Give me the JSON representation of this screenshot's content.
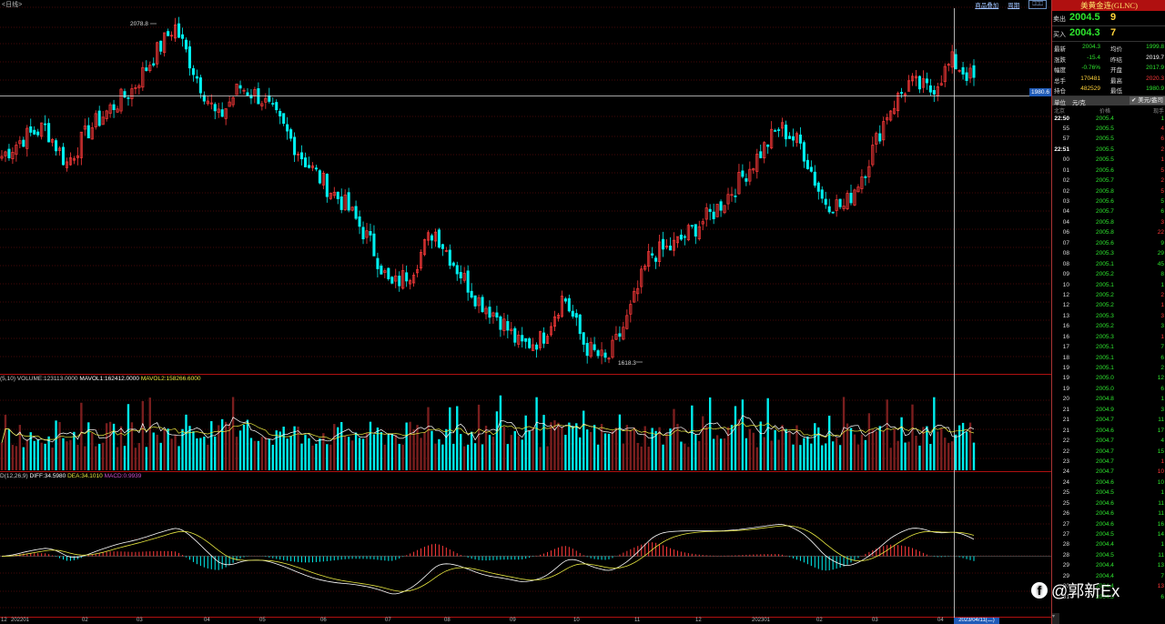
{
  "top": {
    "title": "<日线>",
    "links": [
      "商品叠加",
      "周期"
    ],
    "buttons": [
      "⎕⎕⎕"
    ]
  },
  "annotations": {
    "high_label": "2078.8",
    "low_label": "1618.3",
    "price_tag": "1980.6",
    "date_tag": "2023/04/11(二)"
  },
  "volume_legend": {
    "prefix": "(5,10)",
    "volume": "VOLUME:123113.0000",
    "mavol1": "MAVOL1:162412.0000",
    "mavol2": "MAVOL2:158266.6000"
  },
  "macd_legend": {
    "prefix": "D(12,26,9)",
    "diff": "DIFF:34.5980",
    "dea": "DEA:34.1010",
    "macd": "MACD:0.9939"
  },
  "x_axis_labels": [
    "12",
    "202201",
    "02",
    "03",
    "04",
    "05",
    "06",
    "07",
    "08",
    "09",
    "10",
    "11",
    "12",
    "202301",
    "02",
    "03",
    "04"
  ],
  "colors": {
    "up": "#ff3a3a",
    "down": "#00f0f0",
    "ma1": "#ffffff",
    "ma2": "#e8e840",
    "grid": "#8a1010",
    "quote_green": "#2ee62e",
    "quote_yellow": "#ffd23a",
    "panel_header_bg": "#b01010"
  },
  "panel": {
    "title": "美黄金连(GLNC)",
    "sell": {
      "label": "卖出",
      "price": "2004.5",
      "volume": "9"
    },
    "buy": {
      "label": "买入",
      "price": "2004.3",
      "volume": "7"
    },
    "stats": [
      {
        "l1": "最新",
        "v1": "2004.3",
        "c1": "#2ee62e",
        "l2": "均价",
        "v2": "1999.8",
        "c2": "#2ee62e"
      },
      {
        "l1": "涨跌",
        "v1": "-15.4",
        "c1": "#2ee62e",
        "l2": "昨结",
        "v2": "2019.7",
        "c2": "#ffffff"
      },
      {
        "l1": "幅度",
        "v1": "-0.76%",
        "c1": "#2ee62e",
        "l2": "开盘",
        "v2": "2017.9",
        "c2": "#2ee62e"
      },
      {
        "l1": "总手",
        "v1": "170481",
        "c1": "#ffd23a",
        "l2": "最高",
        "v2": "2020.3",
        "c2": "#ff3a3a"
      },
      {
        "l1": "持仓",
        "v1": "482529",
        "c1": "#ffd23a",
        "l2": "最低",
        "v2": "1980.9",
        "c2": "#2ee62e"
      }
    ],
    "unit_label": "单位",
    "unit_value": "元/克",
    "currency": "✔ 美元/盎司",
    "table_headers": {
      "time": "北京",
      "price": "价格",
      "volume": "现手"
    },
    "ticks": [
      {
        "t": "22:50",
        "p": "2005.4",
        "v": "1",
        "vc": "#2ee62e"
      },
      {
        "t": "55",
        "p": "2005.5",
        "v": "4",
        "vc": "#ff3a3a"
      },
      {
        "t": "57",
        "p": "2005.5",
        "v": "6",
        "vc": "#ff3a3a"
      },
      {
        "t": "22:51",
        "p": "2005.5",
        "v": "2",
        "vc": "#ff3a3a"
      },
      {
        "t": "00",
        "p": "2005.5",
        "v": "1",
        "vc": "#ff3a3a"
      },
      {
        "t": "01",
        "p": "2005.6",
        "v": "5",
        "vc": "#ff3a3a"
      },
      {
        "t": "02",
        "p": "2005.7",
        "v": "2",
        "vc": "#ff3a3a"
      },
      {
        "t": "02",
        "p": "2005.8",
        "v": "5",
        "vc": "#ff3a3a"
      },
      {
        "t": "03",
        "p": "2005.6",
        "v": "5",
        "vc": "#2ee62e"
      },
      {
        "t": "04",
        "p": "2005.7",
        "v": "6",
        "vc": "#2ee62e"
      },
      {
        "t": "04",
        "p": "2005.8",
        "v": "3",
        "vc": "#ff3a3a"
      },
      {
        "t": "06",
        "p": "2005.8",
        "v": "22",
        "vc": "#ff3a3a"
      },
      {
        "t": "07",
        "p": "2005.6",
        "v": "9",
        "vc": "#2ee62e"
      },
      {
        "t": "08",
        "p": "2005.3",
        "v": "29",
        "vc": "#2ee62e"
      },
      {
        "t": "08",
        "p": "2005.1",
        "v": "45",
        "vc": "#2ee62e"
      },
      {
        "t": "09",
        "p": "2005.2",
        "v": "8",
        "vc": "#2ee62e"
      },
      {
        "t": "10",
        "p": "2005.1",
        "v": "1",
        "vc": "#2ee62e"
      },
      {
        "t": "12",
        "p": "2005.2",
        "v": "2",
        "vc": "#ff3a3a"
      },
      {
        "t": "12",
        "p": "2005.2",
        "v": "1",
        "vc": "#ff3a3a"
      },
      {
        "t": "13",
        "p": "2005.3",
        "v": "3",
        "vc": "#ff3a3a"
      },
      {
        "t": "16",
        "p": "2005.2",
        "v": "3",
        "vc": "#2ee62e"
      },
      {
        "t": "16",
        "p": "2005.3",
        "v": "1",
        "vc": "#ff3a3a"
      },
      {
        "t": "17",
        "p": "2005.1",
        "v": "7",
        "vc": "#2ee62e"
      },
      {
        "t": "18",
        "p": "2005.1",
        "v": "6",
        "vc": "#2ee62e"
      },
      {
        "t": "19",
        "p": "2005.1",
        "v": "2",
        "vc": "#2ee62e"
      },
      {
        "t": "19",
        "p": "2005.0",
        "v": "12",
        "vc": "#2ee62e"
      },
      {
        "t": "19",
        "p": "2005.0",
        "v": "6",
        "vc": "#2ee62e"
      },
      {
        "t": "20",
        "p": "2004.8",
        "v": "1",
        "vc": "#2ee62e"
      },
      {
        "t": "21",
        "p": "2004.9",
        "v": "3",
        "vc": "#2ee62e"
      },
      {
        "t": "21",
        "p": "2004.7",
        "v": "11",
        "vc": "#2ee62e"
      },
      {
        "t": "21",
        "p": "2004.6",
        "v": "17",
        "vc": "#2ee62e"
      },
      {
        "t": "22",
        "p": "2004.7",
        "v": "4",
        "vc": "#2ee62e"
      },
      {
        "t": "22",
        "p": "2004.7",
        "v": "15",
        "vc": "#2ee62e"
      },
      {
        "t": "23",
        "p": "2004.7",
        "v": "1",
        "vc": "#ff3a3a"
      },
      {
        "t": "24",
        "p": "2004.7",
        "v": "10",
        "vc": "#ff3a3a"
      },
      {
        "t": "24",
        "p": "2004.6",
        "v": "10",
        "vc": "#2ee62e"
      },
      {
        "t": "25",
        "p": "2004.5",
        "v": "1",
        "vc": "#2ee62e"
      },
      {
        "t": "25",
        "p": "2004.6",
        "v": "11",
        "vc": "#2ee62e"
      },
      {
        "t": "26",
        "p": "2004.6",
        "v": "11",
        "vc": "#2ee62e"
      },
      {
        "t": "27",
        "p": "2004.6",
        "v": "16",
        "vc": "#2ee62e"
      },
      {
        "t": "27",
        "p": "2004.5",
        "v": "14",
        "vc": "#2ee62e"
      },
      {
        "t": "28",
        "p": "2004.4",
        "v": "1",
        "vc": "#2ee62e"
      },
      {
        "t": "28",
        "p": "2004.5",
        "v": "11",
        "vc": "#2ee62e"
      },
      {
        "t": "29",
        "p": "2004.4",
        "v": "13",
        "vc": "#2ee62e"
      },
      {
        "t": "29",
        "p": "2004.4",
        "v": "7",
        "vc": "#2ee62e"
      },
      {
        "t": "30",
        "p": "2004.4",
        "v": "13",
        "vc": "#ff3a3a"
      },
      {
        "t": "31",
        "p": "2004.3",
        "v": "6",
        "vc": "#2ee62e"
      }
    ]
  },
  "watermark": {
    "logo": "f",
    "text": "@郭新Ex"
  },
  "chart_data": {
    "type": "line",
    "series": [
      {
        "values": [
          1900,
          1925,
          1940,
          1890,
          1935,
          1965,
          1990,
          2035,
          2078.8,
          2010,
          1950,
          1995,
          1980,
          1940,
          1895,
          1860,
          1830,
          1785,
          1720,
          1745,
          1800,
          1750,
          1705,
          1680,
          1640,
          1650,
          1710,
          1640,
          1618.3,
          1680,
          1765,
          1775,
          1800,
          1825,
          1860,
          1900,
          1940,
          1915,
          1840,
          1830,
          1885,
          1960,
          2000,
          1990,
          2030,
          2004.3
        ]
      }
    ],
    "markers": {
      "high": 2078.8,
      "low": 1618.3,
      "last": 2004.3,
      "crosshair_price": 1980.6,
      "crosshair_date": "2023/04/11(二)"
    },
    "volume": {
      "mavol1": 162412,
      "mavol2": 158266.6,
      "latest": 123113
    },
    "macd": {
      "params": "12,26,9",
      "diff": 34.598,
      "dea": 34.101,
      "macd": 0.9939
    },
    "grid": true
  }
}
